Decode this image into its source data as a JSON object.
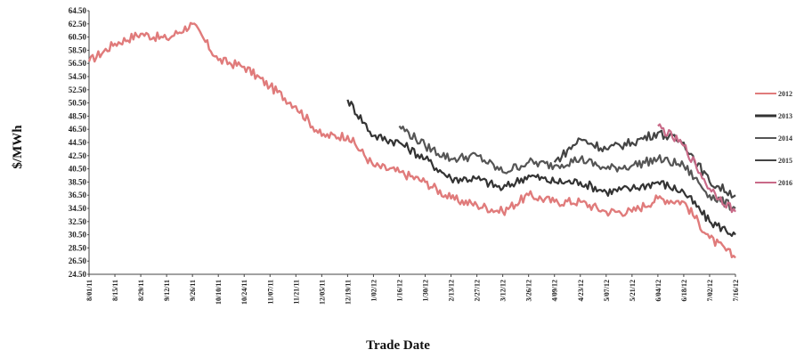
{
  "chart_data": {
    "type": "line",
    "title": "",
    "xlabel": "Trade Date",
    "ylabel": "$/MWh",
    "ylim": [
      24.5,
      64.5
    ],
    "yticks": [
      "24.50",
      "26.50",
      "28.50",
      "30.50",
      "32.50",
      "34.50",
      "36.50",
      "38.50",
      "40.50",
      "42.50",
      "44.50",
      "46.50",
      "48.50",
      "50.50",
      "52.50",
      "54.50",
      "56.50",
      "58.50",
      "60.50",
      "62.50",
      "64.50"
    ],
    "ytick_values": [
      24.5,
      26.5,
      28.5,
      30.5,
      32.5,
      34.5,
      36.5,
      38.5,
      40.5,
      42.5,
      44.5,
      46.5,
      48.5,
      50.5,
      52.5,
      54.5,
      56.5,
      58.5,
      60.5,
      62.5,
      64.5
    ],
    "categories": [
      "8/01/11",
      "8/15/11",
      "8/29/11",
      "9/12/11",
      "9/26/11",
      "10/10/11",
      "10/24/11",
      "11/07/11",
      "11/21/11",
      "12/05/11",
      "12/19/11",
      "1/02/12",
      "1/16/12",
      "1/30/12",
      "2/13/12",
      "2/27/12",
      "3/12/12",
      "3/26/12",
      "4/09/12",
      "4/23/12",
      "5/07/12",
      "5/21/12",
      "6/04/12",
      "6/18/12",
      "7/02/12",
      "7/16/12"
    ],
    "grid": false,
    "legend_position": "right",
    "series": [
      {
        "name": "2012",
        "color": "#e07b7b",
        "values": [
          56.8,
          59.5,
          61.0,
          60.2,
          62.5,
          57.0,
          56.0,
          53.0,
          50.0,
          45.5,
          45.5,
          41.0,
          40.0,
          38.5,
          36.0,
          35.0,
          34.0,
          36.5,
          35.5,
          35.5,
          34.0,
          34.0,
          36.0,
          35.5,
          30.0,
          27.0
        ]
      },
      {
        "name": "2013",
        "color": "#333333",
        "values": [
          null,
          null,
          null,
          null,
          null,
          null,
          null,
          null,
          null,
          null,
          51.0,
          45.5,
          44.5,
          42.0,
          39.0,
          39.0,
          37.5,
          39.5,
          38.5,
          38.5,
          37.0,
          37.5,
          38.5,
          37.0,
          32.5,
          30.5
        ]
      },
      {
        "name": "2014",
        "color": "#555555",
        "values": [
          null,
          null,
          null,
          null,
          null,
          null,
          null,
          null,
          null,
          null,
          null,
          null,
          47.0,
          44.0,
          42.0,
          42.5,
          40.0,
          41.5,
          41.0,
          42.0,
          40.5,
          41.0,
          42.0,
          41.0,
          36.5,
          34.5
        ]
      },
      {
        "name": "2015",
        "color": "#444444",
        "values": [
          null,
          null,
          null,
          null,
          null,
          null,
          null,
          null,
          null,
          null,
          null,
          null,
          null,
          null,
          null,
          null,
          null,
          null,
          41.5,
          45.0,
          43.5,
          44.5,
          46.0,
          44.5,
          38.5,
          36.5
        ]
      },
      {
        "name": "2016",
        "color": "#c96a88",
        "values": [
          null,
          null,
          null,
          null,
          null,
          null,
          null,
          null,
          null,
          null,
          null,
          null,
          null,
          null,
          null,
          null,
          null,
          null,
          null,
          null,
          null,
          null,
          47.0,
          44.0,
          37.5,
          34.0
        ]
      }
    ]
  },
  "legend": {
    "labels": [
      "2012",
      "2013",
      "2014",
      "2015",
      "2016"
    ]
  }
}
